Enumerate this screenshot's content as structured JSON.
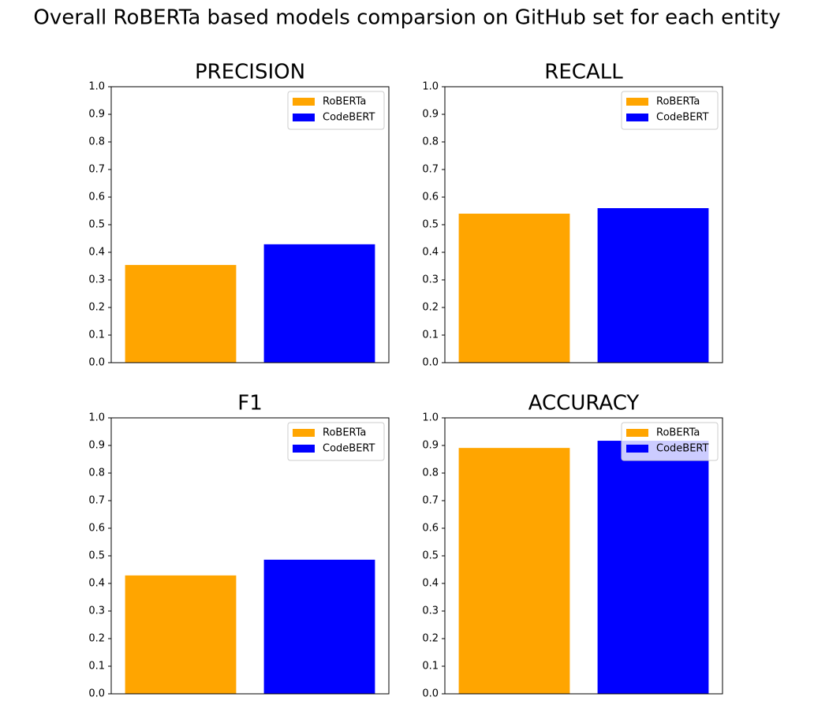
{
  "title": "Overall RoBERTa based models comparsion on GitHub set for each entity",
  "chart_data": [
    {
      "type": "bar",
      "title": "PRECISION",
      "categories": [
        null
      ],
      "series": [
        {
          "name": "RoBERTa",
          "color": "orange",
          "values": [
            0.354
          ]
        },
        {
          "name": "CodeBERT",
          "color": "blue",
          "values": [
            0.429
          ]
        }
      ],
      "ylim": [
        0,
        1
      ],
      "yticks": [
        {
          "value": 0,
          "label": "0.0"
        },
        0.1,
        0.2,
        0.3,
        0.4,
        0.5,
        0.6,
        0.7,
        0.8,
        0.9,
        {
          "value": 1,
          "label": "1.0"
        }
      ],
      "legend": "upper right",
      "grid": false
    },
    {
      "type": "bar",
      "title": "RECALL",
      "categories": [
        null
      ],
      "series": [
        {
          "name": "RoBERTa",
          "color": "orange",
          "values": [
            0.54
          ]
        },
        {
          "name": "CodeBERT",
          "color": "blue",
          "values": [
            0.56
          ]
        }
      ],
      "ylim": [
        0,
        1
      ],
      "yticks": [
        {
          "value": 0,
          "label": "0.0"
        },
        0.1,
        0.2,
        0.3,
        0.4,
        0.5,
        0.6,
        0.7,
        0.8,
        0.9,
        {
          "value": 1,
          "label": "1.0"
        }
      ],
      "legend": "upper right",
      "grid": false
    },
    {
      "type": "bar",
      "title": "F1",
      "categories": [
        null
      ],
      "series": [
        {
          "name": "RoBERTa",
          "color": "orange",
          "values": [
            0.429
          ]
        },
        {
          "name": "CodeBERT",
          "color": "blue",
          "values": [
            0.486
          ]
        }
      ],
      "ylim": [
        0,
        1
      ],
      "yticks": [
        {
          "value": 0,
          "label": "0.0"
        },
        0.1,
        0.2,
        0.3,
        0.4,
        0.5,
        0.6,
        0.7,
        0.8,
        0.9,
        {
          "value": 1,
          "label": "1.0"
        }
      ],
      "legend": "upper right",
      "grid": false
    },
    {
      "type": "bar",
      "title": "ACCURACY",
      "categories": [
        null
      ],
      "series": [
        {
          "name": "RoBERTa",
          "color": "orange",
          "values": [
            0.891
          ]
        },
        {
          "name": "CodeBERT",
          "color": "blue",
          "values": [
            0.917
          ]
        }
      ],
      "ylim": [
        0,
        1
      ],
      "yticks": [
        {
          "value": 0,
          "label": "0.0"
        },
        0.1,
        0.2,
        0.3,
        0.4,
        0.5,
        0.6,
        0.7,
        0.8,
        0.9,
        {
          "value": 1,
          "label": "1.0"
        }
      ],
      "legend": "upper right",
      "grid": false
    }
  ]
}
